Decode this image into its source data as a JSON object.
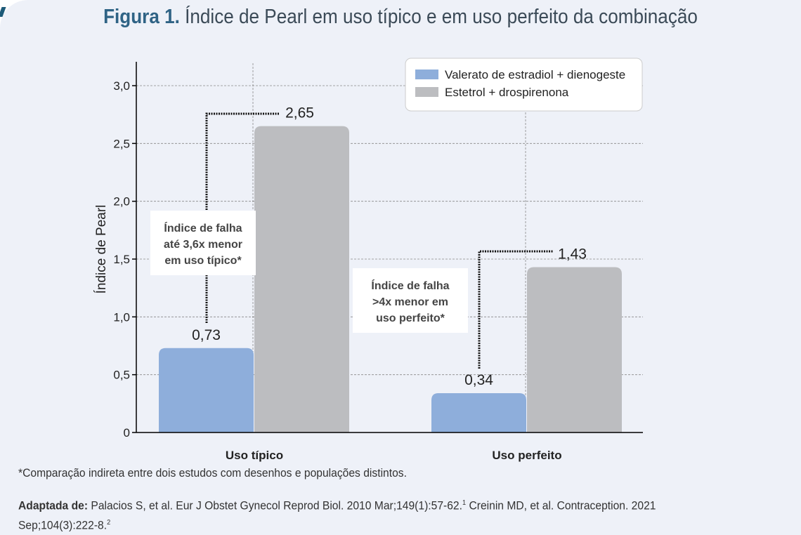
{
  "title": {
    "prefix": "Figura 1.",
    "text": "Índice de Pearl em uso típico e em uso perfeito da combinação"
  },
  "chart_data": {
    "type": "bar",
    "categories": [
      "Uso típico",
      "Uso perfeito"
    ],
    "series": [
      {
        "name": "Valerato de estradiol + dienogeste",
        "values": [
          0.73,
          0.34
        ],
        "labels": [
          "0,73",
          "0,34"
        ],
        "color": "#8eaedb"
      },
      {
        "name": "Estetrol + drospirenona",
        "values": [
          2.65,
          1.43
        ],
        "labels": [
          "2,65",
          "1,43"
        ],
        "color": "#bcbdc0"
      }
    ],
    "ylabel": "Índice de Pearl",
    "ylim": [
      0,
      3.2
    ],
    "yticks": [
      0,
      0.5,
      1.0,
      1.5,
      2.0,
      2.5,
      3.0
    ],
    "ytick_labels": [
      "0",
      "0,5",
      "1,0",
      "1,5",
      "2,0",
      "2,5",
      "3,0"
    ],
    "grid": "dashed",
    "legend": "top-right",
    "annotations": [
      {
        "lines": [
          "Índice de falha",
          "até 3,6x menor",
          "em uso típico*"
        ]
      },
      {
        "lines": [
          "Índice de falha",
          ">4x menor em",
          "uso perfeito*"
        ]
      }
    ]
  },
  "footnote": "*Comparação indireta entre dois estudos com desenhos e populações distintos.",
  "source": {
    "label": "Adaptada de:",
    "text1": "Palacios S, et al. Eur J Obstet Gynecol Reprod Biol. 2010 Mar;149(1):57-62.",
    "sup1": "1",
    "text2": " Creinin MD, et al. Contraception. 2021",
    "text3": "Sep;104(3):222-8.",
    "sup2": "2"
  }
}
